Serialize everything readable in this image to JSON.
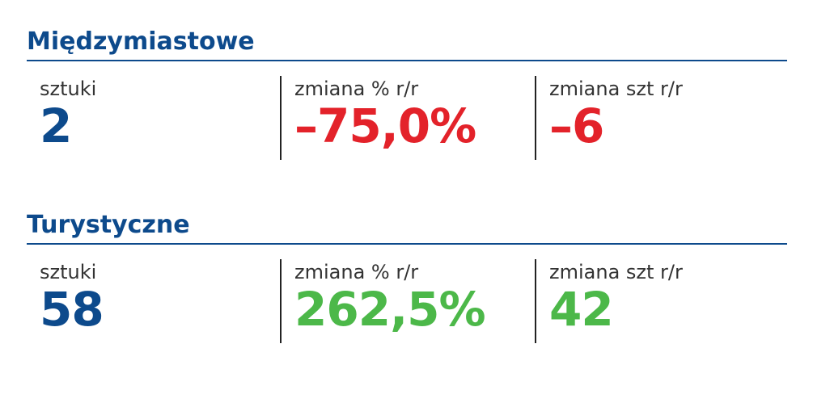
{
  "sections": [
    {
      "title": "Międzymiastowe",
      "stats": [
        {
          "label": "sztuki",
          "value": "2",
          "tone": "blue"
        },
        {
          "label": "zmiana % r/r",
          "value": "–75,0%",
          "tone": "red"
        },
        {
          "label": "zmiana szt r/r",
          "value": "–6",
          "tone": "red"
        }
      ]
    },
    {
      "title": "Turystyczne",
      "stats": [
        {
          "label": "sztuki",
          "value": "58",
          "tone": "blue"
        },
        {
          "label": "zmiana % r/r",
          "value": "262,5%",
          "tone": "green"
        },
        {
          "label": "zmiana szt r/r",
          "value": "42",
          "tone": "green"
        }
      ]
    }
  ]
}
